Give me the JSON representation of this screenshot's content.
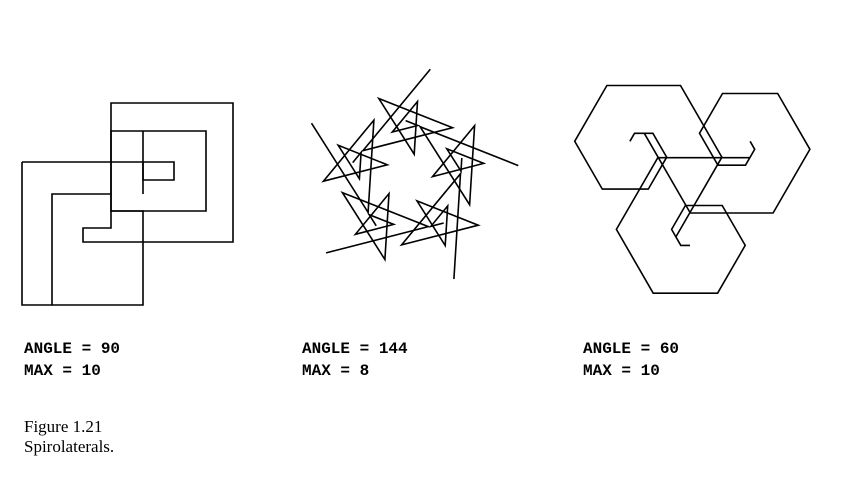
{
  "panels": [
    {
      "angle_label": "ANGLE = 90",
      "max_label": "MAX = 10",
      "angle": 90,
      "max": 10,
      "drawing_icon": "spirolateral-square-icon"
    },
    {
      "angle_label": "ANGLE = 144",
      "max_label": "MAX = 8",
      "angle": 144,
      "max": 8,
      "drawing_icon": "spirolateral-star-icon"
    },
    {
      "angle_label": "ANGLE = 60",
      "max_label": "MAX = 10",
      "angle": 60,
      "max": 10,
      "drawing_icon": "spirolateral-hexagon-icon"
    }
  ],
  "caption": {
    "number": "Figure 1.21",
    "title": "Spirolaterals."
  }
}
